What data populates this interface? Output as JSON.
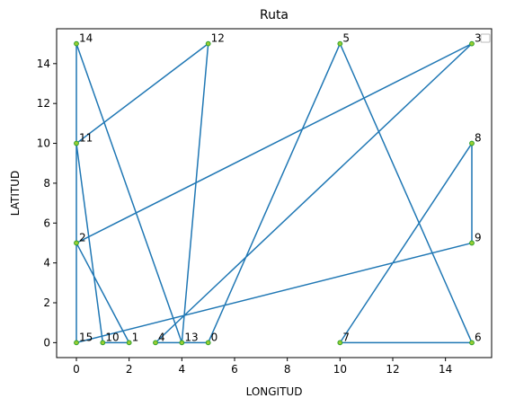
{
  "chart_data": {
    "type": "line",
    "title": "Ruta",
    "xlabel": "LONGITUD",
    "ylabel": "LATITUD",
    "xlim": [
      -0.75,
      15.75
    ],
    "ylim": [
      -0.75,
      15.75
    ],
    "xticks": [
      "0",
      "2",
      "4",
      "6",
      "8",
      "10",
      "12",
      "14"
    ],
    "yticks": [
      "0",
      "2",
      "4",
      "6",
      "8",
      "10",
      "12",
      "14"
    ],
    "grid": false,
    "line_color": "#1f77b4",
    "marker_face_color": "#9acd32",
    "marker_edge_color": "#2ca02c",
    "points": [
      {
        "label": "0",
        "x": 5,
        "y": 0
      },
      {
        "label": "1",
        "x": 2,
        "y": 0
      },
      {
        "label": "2",
        "x": 0,
        "y": 5
      },
      {
        "label": "3",
        "x": 15,
        "y": 15
      },
      {
        "label": "4",
        "x": 3,
        "y": 0
      },
      {
        "label": "5",
        "x": 10,
        "y": 15
      },
      {
        "label": "6",
        "x": 15,
        "y": 0
      },
      {
        "label": "7",
        "x": 10,
        "y": 0
      },
      {
        "label": "8",
        "x": 15,
        "y": 10
      },
      {
        "label": "9",
        "x": 15,
        "y": 5
      },
      {
        "label": "10",
        "x": 1,
        "y": 0
      },
      {
        "label": "11",
        "x": 0,
        "y": 10
      },
      {
        "label": "12",
        "x": 5,
        "y": 15
      },
      {
        "label": "13",
        "x": 4,
        "y": 0
      },
      {
        "label": "14",
        "x": 0,
        "y": 15
      },
      {
        "label": "15",
        "x": 0,
        "y": 0
      }
    ],
    "route": [
      "0",
      "13",
      "12",
      "11",
      "14",
      "13",
      "4",
      "3",
      "2",
      "1",
      "10",
      "11",
      "2",
      "15",
      "9",
      "8",
      "7",
      "6",
      "5",
      "0"
    ]
  }
}
